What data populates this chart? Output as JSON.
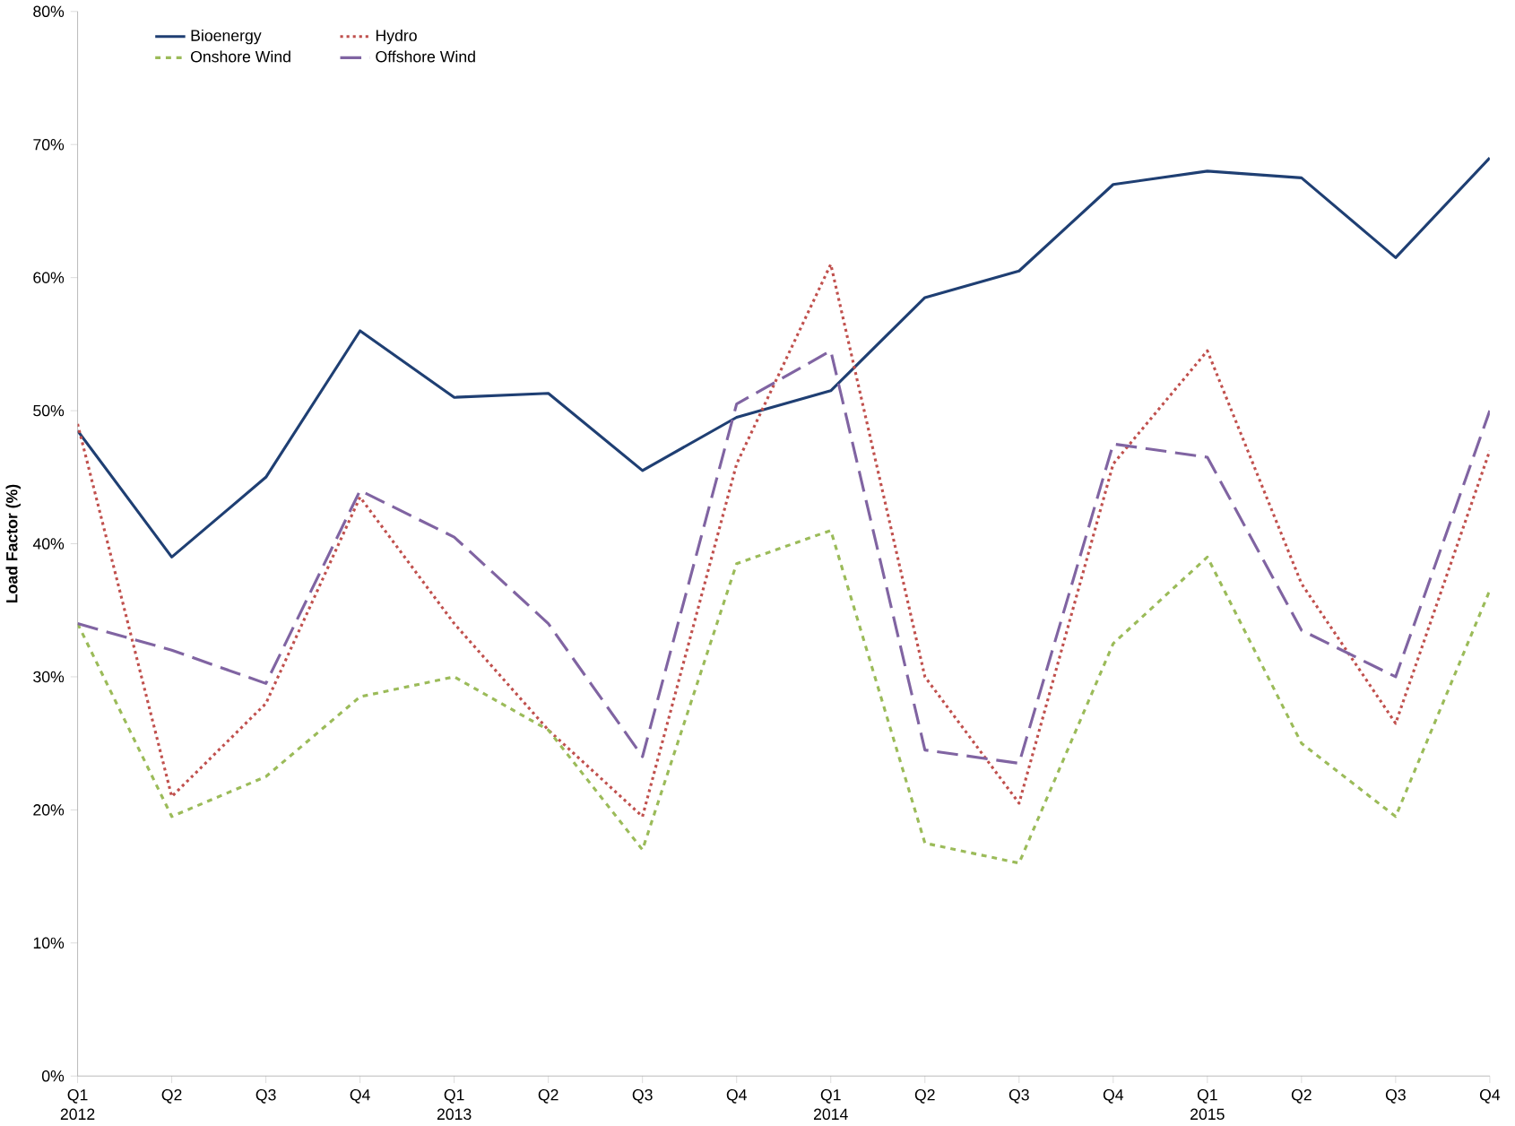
{
  "chart_data": {
    "type": "line",
    "ylabel": "Load Factor (%)",
    "categories": [
      "Q1 2012",
      "Q2",
      "Q3",
      "Q4",
      "Q1 2013",
      "Q2",
      "Q3",
      "Q4",
      "Q1 2014",
      "Q2",
      "Q3",
      "Q4",
      "Q1 2015",
      "Q2",
      "Q3",
      "Q4"
    ],
    "series": [
      {
        "name": "Bioenergy",
        "color": "#1f3f73",
        "line_style": "solid",
        "values": [
          48.5,
          39,
          45,
          56,
          51,
          51.3,
          45.5,
          49.5,
          51.5,
          58.5,
          60.5,
          67,
          68,
          67.5,
          61.5,
          69
        ]
      },
      {
        "name": "Hydro",
        "color": "#c0504d",
        "line_style": "dotted",
        "values": [
          49,
          21,
          28,
          43.5,
          34,
          26,
          19.5,
          46,
          61,
          30,
          20.5,
          46,
          54.5,
          37,
          26.5,
          47
        ]
      },
      {
        "name": "Onshore Wind",
        "color": "#9bbb59",
        "line_style": "dashed",
        "values": [
          34,
          19.5,
          22.5,
          28.5,
          30,
          26,
          17,
          38.5,
          41,
          17.5,
          16,
          32.5,
          39,
          25,
          19.5,
          36.5
        ]
      },
      {
        "name": "Offshore Wind",
        "color": "#8064a2",
        "line_style": "longdashed",
        "values": [
          34,
          32,
          29.5,
          44,
          40.5,
          34,
          24,
          50.5,
          54.5,
          24.5,
          23.5,
          47.5,
          46.5,
          33.5,
          30,
          50
        ]
      }
    ],
    "ylim": [
      0,
      80
    ],
    "yticks": [
      {
        "value": 0,
        "label": "0%"
      },
      {
        "value": 10,
        "label": "10%"
      },
      {
        "value": 20,
        "label": "20%"
      },
      {
        "value": 30,
        "label": "30%"
      },
      {
        "value": 40,
        "label": "40%"
      },
      {
        "value": 50,
        "label": "50%"
      },
      {
        "value": 60,
        "label": "60%"
      },
      {
        "value": 70,
        "label": "70%"
      },
      {
        "value": 80,
        "label": "80%"
      }
    ],
    "legend": "top left",
    "grid": false,
    "marker": "none"
  }
}
